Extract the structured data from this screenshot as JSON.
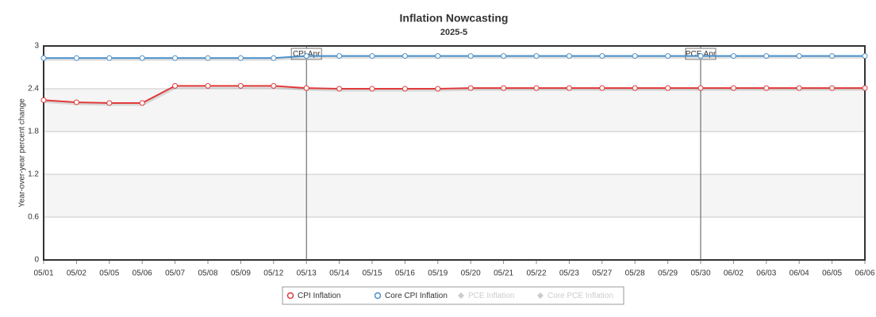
{
  "chart_data": {
    "type": "line",
    "title": "Inflation Nowcasting",
    "subtitle": "2025-5",
    "y_label": "Year-over-year percent change",
    "categories": [
      "05/01",
      "05/02",
      "05/05",
      "05/06",
      "05/07",
      "05/08",
      "05/09",
      "05/12",
      "05/13",
      "05/14",
      "05/15",
      "05/16",
      "05/19",
      "05/20",
      "05/21",
      "05/22",
      "05/23",
      "05/27",
      "05/28",
      "05/29",
      "05/30",
      "06/02",
      "06/03",
      "06/04",
      "06/05",
      "06/06"
    ],
    "series": [
      {
        "name": "CPI Inflation",
        "color": "#e03a3a",
        "values": [
          2.24,
          2.21,
          2.2,
          2.2,
          2.44,
          2.44,
          2.44,
          2.44,
          2.41,
          2.4,
          2.4,
          2.4,
          2.4,
          2.41,
          2.41,
          2.41,
          2.41,
          2.41,
          2.41,
          2.41,
          2.41,
          2.41,
          2.41,
          2.41,
          2.41,
          2.41
        ]
      },
      {
        "name": "Core CPI Inflation",
        "color": "#4a8fc9",
        "values": [
          2.83,
          2.83,
          2.83,
          2.83,
          2.83,
          2.83,
          2.83,
          2.83,
          2.86,
          2.86,
          2.86,
          2.86,
          2.86,
          2.86,
          2.86,
          2.86,
          2.86,
          2.86,
          2.86,
          2.86,
          2.86,
          2.86,
          2.86,
          2.86,
          2.86,
          2.86
        ]
      },
      {
        "name": "PCE Inflation",
        "color": "#cccccc",
        "visible": false
      },
      {
        "name": "Core PCE Inflation",
        "color": "#cccccc",
        "visible": false
      }
    ],
    "annotations": [
      {
        "label": "CPI Apr",
        "x": "05/13"
      },
      {
        "label": "PCE Apr",
        "x": "05/30"
      }
    ],
    "ylim": [
      0,
      3
    ],
    "yticks": [
      0,
      0.6,
      1.2,
      1.8,
      2.4,
      3
    ],
    "grid": true,
    "alternate_bands": true,
    "legend": "bottom"
  }
}
